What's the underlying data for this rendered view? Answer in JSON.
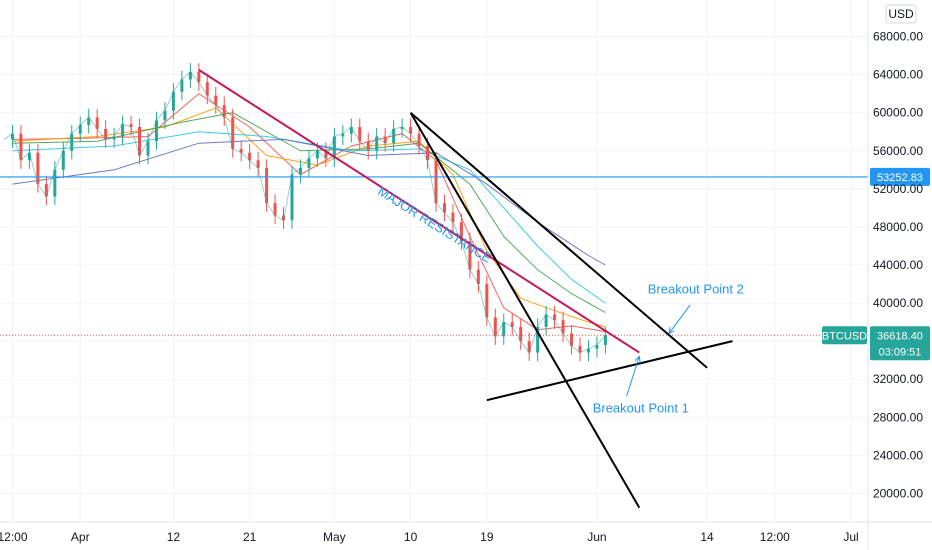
{
  "chart_data": {
    "type": "line",
    "symbol": "BTCUSD",
    "currency": "USD",
    "ylim": [
      17000,
      71000
    ],
    "price_ticks": [
      68000,
      64000,
      60000,
      56000,
      52000,
      48000,
      44000,
      40000,
      36000,
      32000,
      28000,
      24000,
      20000
    ],
    "price_tick_labels": [
      "68000.00",
      "64000.00",
      "60000.00",
      "56000.00",
      "52000.00",
      "48000.00",
      "44000.00",
      "40000.00",
      "36000.00",
      "32000.00",
      "28000.00",
      "24000.00",
      "20000.00"
    ],
    "time_ticks": [
      {
        "label": "12:00",
        "t": 0
      },
      {
        "label": "Apr",
        "t": 8
      },
      {
        "label": "12",
        "t": 19
      },
      {
        "label": "21",
        "t": 28
      },
      {
        "label": "May",
        "t": 38
      },
      {
        "label": "10",
        "t": 47
      },
      {
        "label": "19",
        "t": 56
      },
      {
        "label": "Jun",
        "t": 69
      },
      {
        "label": "14",
        "t": 82
      },
      {
        "label": "12:00",
        "t": 90
      },
      {
        "label": "Jul",
        "t": 99
      }
    ],
    "xlim": [
      -1,
      101
    ],
    "last_price": {
      "value": 36618.4,
      "label": "36618.40",
      "symbol_label": "BTCUSD",
      "countdown": "03:09:51"
    },
    "horizontal_level": {
      "value": 53252.83,
      "label": "53252.83"
    },
    "price_series": [
      {
        "t": -1,
        "v": 57200
      },
      {
        "t": 0,
        "v": 57800
      },
      {
        "t": 1,
        "v": 55000
      },
      {
        "t": 2,
        "v": 55800
      },
      {
        "t": 3,
        "v": 52500
      },
      {
        "t": 4,
        "v": 51200
      },
      {
        "t": 5,
        "v": 54000
      },
      {
        "t": 6,
        "v": 56000
      },
      {
        "t": 7,
        "v": 57800
      },
      {
        "t": 8,
        "v": 58700
      },
      {
        "t": 9,
        "v": 59500
      },
      {
        "t": 10,
        "v": 58300
      },
      {
        "t": 11,
        "v": 57200
      },
      {
        "t": 12,
        "v": 57500
      },
      {
        "t": 13,
        "v": 58800
      },
      {
        "t": 14,
        "v": 58500
      },
      {
        "t": 15,
        "v": 55500
      },
      {
        "t": 16,
        "v": 57000
      },
      {
        "t": 17,
        "v": 59200
      },
      {
        "t": 18,
        "v": 60200
      },
      {
        "t": 19,
        "v": 62200
      },
      {
        "t": 20,
        "v": 63500
      },
      {
        "t": 21,
        "v": 64300
      },
      {
        "t": 22,
        "v": 63200
      },
      {
        "t": 23,
        "v": 61800
      },
      {
        "t": 24,
        "v": 60800
      },
      {
        "t": 25,
        "v": 59500
      },
      {
        "t": 26,
        "v": 56200
      },
      {
        "t": 27,
        "v": 55800
      },
      {
        "t": 28,
        "v": 55000
      },
      {
        "t": 29,
        "v": 54200
      },
      {
        "t": 30,
        "v": 50500
      },
      {
        "t": 31,
        "v": 49200
      },
      {
        "t": 32,
        "v": 48700
      },
      {
        "t": 33,
        "v": 53500
      },
      {
        "t": 34,
        "v": 54200
      },
      {
        "t": 35,
        "v": 55200
      },
      {
        "t": 36,
        "v": 56000
      },
      {
        "t": 37,
        "v": 55200
      },
      {
        "t": 38,
        "v": 57500
      },
      {
        "t": 39,
        "v": 57800
      },
      {
        "t": 40,
        "v": 58500
      },
      {
        "t": 41,
        "v": 57000
      },
      {
        "t": 42,
        "v": 56000
      },
      {
        "t": 43,
        "v": 57500
      },
      {
        "t": 44,
        "v": 56800
      },
      {
        "t": 45,
        "v": 58300
      },
      {
        "t": 46,
        "v": 58500
      },
      {
        "t": 47,
        "v": 57800
      },
      {
        "t": 48,
        "v": 56500
      },
      {
        "t": 49,
        "v": 55000
      },
      {
        "t": 50,
        "v": 50500
      },
      {
        "t": 51,
        "v": 49500
      },
      {
        "t": 52,
        "v": 48500
      },
      {
        "t": 53,
        "v": 46500
      },
      {
        "t": 54,
        "v": 43500
      },
      {
        "t": 55,
        "v": 42000
      },
      {
        "t": 56,
        "v": 38500
      },
      {
        "t": 57,
        "v": 36500
      },
      {
        "t": 58,
        "v": 38000
      },
      {
        "t": 59,
        "v": 37500
      },
      {
        "t": 60,
        "v": 36000
      },
      {
        "t": 61,
        "v": 34800
      },
      {
        "t": 62,
        "v": 37500
      },
      {
        "t": 63,
        "v": 38800
      },
      {
        "t": 64,
        "v": 38200
      },
      {
        "t": 65,
        "v": 36800
      },
      {
        "t": 66,
        "v": 35500
      },
      {
        "t": 67,
        "v": 34800
      },
      {
        "t": 68,
        "v": 35200
      },
      {
        "t": 69,
        "v": 35600
      },
      {
        "t": 70,
        "v": 36618
      }
    ],
    "moving_averages": [
      {
        "color": "#ef5350",
        "points": [
          [
            0,
            57200
          ],
          [
            8,
            57300
          ],
          [
            16,
            57500
          ],
          [
            22,
            62000
          ],
          [
            28,
            58500
          ],
          [
            34,
            53500
          ],
          [
            40,
            56500
          ],
          [
            46,
            57800
          ],
          [
            50,
            55000
          ],
          [
            54,
            47000
          ],
          [
            58,
            39500
          ],
          [
            62,
            37200
          ],
          [
            66,
            37600
          ],
          [
            70,
            37000
          ]
        ]
      },
      {
        "color": "#ff9800",
        "points": [
          [
            0,
            57000
          ],
          [
            10,
            57500
          ],
          [
            18,
            58500
          ],
          [
            24,
            60500
          ],
          [
            30,
            55500
          ],
          [
            36,
            54500
          ],
          [
            42,
            56500
          ],
          [
            48,
            57000
          ],
          [
            52,
            53500
          ],
          [
            56,
            45500
          ],
          [
            60,
            40500
          ],
          [
            64,
            39200
          ],
          [
            68,
            38000
          ],
          [
            70,
            37500
          ]
        ]
      },
      {
        "color": "#43a047",
        "points": [
          [
            0,
            56800
          ],
          [
            10,
            57000
          ],
          [
            20,
            59000
          ],
          [
            26,
            60000
          ],
          [
            34,
            56000
          ],
          [
            42,
            56200
          ],
          [
            48,
            56800
          ],
          [
            54,
            52500
          ],
          [
            58,
            47000
          ],
          [
            62,
            43500
          ],
          [
            66,
            41000
          ],
          [
            70,
            39000
          ]
        ]
      },
      {
        "color": "#26c6da",
        "points": [
          [
            0,
            56000
          ],
          [
            12,
            56500
          ],
          [
            22,
            58000
          ],
          [
            30,
            57500
          ],
          [
            40,
            56000
          ],
          [
            48,
            56200
          ],
          [
            54,
            54000
          ],
          [
            58,
            50000
          ],
          [
            62,
            46000
          ],
          [
            66,
            42500
          ],
          [
            70,
            40000
          ]
        ]
      },
      {
        "color": "#5c6bc0",
        "points": [
          [
            0,
            52500
          ],
          [
            12,
            54000
          ],
          [
            22,
            56800
          ],
          [
            32,
            57200
          ],
          [
            42,
            55500
          ],
          [
            50,
            55800
          ],
          [
            56,
            52500
          ],
          [
            62,
            48500
          ],
          [
            68,
            45000
          ],
          [
            70,
            44000
          ]
        ]
      }
    ],
    "trendlines": [
      {
        "name": "major-resistance-line",
        "color": "#c2185b",
        "from": [
          22,
          64500
        ],
        "to": [
          74,
          34800
        ]
      },
      {
        "name": "upper-descending-line",
        "color": "#000000",
        "from": [
          47,
          60000
        ],
        "to": [
          82,
          33200
        ]
      },
      {
        "name": "steep-descending-line",
        "color": "#000000",
        "from": [
          47,
          60000
        ],
        "to": [
          74,
          18500
        ]
      },
      {
        "name": "support-line",
        "color": "#000000",
        "from": [
          56,
          29800
        ],
        "to": [
          85,
          36000
        ]
      }
    ],
    "annotations": [
      {
        "name": "major-resistance-label",
        "text": "MAJOR RESISTANCE",
        "color": "#2196f3"
      },
      {
        "name": "breakout-point-2-label",
        "text": "Breakout Point 2",
        "color": "#2196f3"
      },
      {
        "name": "breakout-point-1-label",
        "text": "Breakout Point 1",
        "color": "#2196f3"
      }
    ],
    "arrows": [
      {
        "name": "breakout-point-2-arrow",
        "from": [
          80,
          39800
        ],
        "to": [
          77.5,
          36800
        ]
      },
      {
        "name": "breakout-point-1-arrow",
        "from": [
          72.5,
          30200
        ],
        "to": [
          74,
          34400
        ]
      }
    ]
  },
  "colors": {
    "grid": "#f0f3fa",
    "axis_text": "#131722",
    "candle_up": "#26a69a",
    "level_line": "#2196f3",
    "last_price_line": "#ef5350",
    "last_price_badge": "#26a69a"
  }
}
